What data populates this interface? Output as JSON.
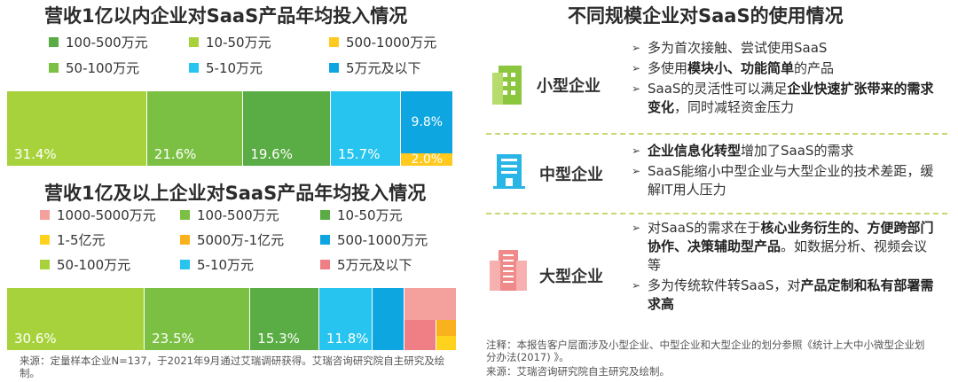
{
  "chart_data": [
    {
      "type": "bar",
      "orientation": "stacked-horizontal",
      "title": "营收1亿以内企业对SaaS产品年均投入情况",
      "legend": [
        {
          "label": "100-500万元",
          "color": "#5aac44"
        },
        {
          "label": "10-50万元",
          "color": "#a8d23c"
        },
        {
          "label": "500-1000万元",
          "color": "#ffc91e"
        },
        {
          "label": "50-100万元",
          "color": "#7bc043"
        },
        {
          "label": "5-10万元",
          "color": "#26c4ee"
        },
        {
          "label": "5万元及以下",
          "color": "#0ea6e0"
        }
      ],
      "segments": [
        {
          "name": "10-50万元",
          "value": 31.4,
          "label": "31.4%",
          "color": "#a8d23c"
        },
        {
          "name": "50-100万元",
          "value": 21.6,
          "label": "21.6%",
          "color": "#7bc043"
        },
        {
          "name": "100-500万元",
          "value": 19.6,
          "label": "19.6%",
          "color": "#5aac44"
        },
        {
          "name": "5-10万元",
          "value": 15.7,
          "label": "15.7%",
          "color": "#26c4ee"
        },
        {
          "name": "5万元及以下",
          "value": 9.8,
          "label": "9.8%",
          "color": "#0ea6e0"
        },
        {
          "name": "500-1000万元",
          "value": 2.0,
          "label": "2.0%",
          "color": "#ffc91e"
        }
      ]
    },
    {
      "type": "bar",
      "orientation": "stacked-horizontal",
      "title": "营收1亿及以上企业对SaaS产品年均投入情况",
      "legend": [
        {
          "label": "1000-5000万元",
          "color": "#f4a09c"
        },
        {
          "label": "100-500万元",
          "color": "#7bc043"
        },
        {
          "label": "10-50万元",
          "color": "#5aac44"
        },
        {
          "label": "1-5亿元",
          "color": "#ffd21e"
        },
        {
          "label": "5000万-1亿元",
          "color": "#f9b21e"
        },
        {
          "label": "500-1000万元",
          "color": "#0ea6e0"
        },
        {
          "label": "50-100万元",
          "color": "#a8d23c"
        },
        {
          "label": "5-10万元",
          "color": "#26c4ee"
        },
        {
          "label": "5万元及以下",
          "color": "#f07f85"
        }
      ],
      "segments": [
        {
          "name": "50-100万元",
          "value": 30.6,
          "label": "30.6%",
          "color": "#a8d23c"
        },
        {
          "name": "100-500万元",
          "value": 23.5,
          "label": "23.5%",
          "color": "#7bc043"
        },
        {
          "name": "10-50万元",
          "value": 15.3,
          "label": "15.3%",
          "color": "#5aac44"
        },
        {
          "name": "5-10万元",
          "value": 11.8,
          "label": "11.8%",
          "color": "#26c4ee"
        },
        {
          "name": "500-1000万元",
          "value": 7.1,
          "label": "",
          "color": "#0ea6e0"
        },
        {
          "name": "1000-5000万元",
          "value": 6.0,
          "label": "",
          "color": "#f4a09c"
        },
        {
          "name": "5万元及以下",
          "value": 3.5,
          "label": "",
          "color": "#f07f85"
        },
        {
          "name": "5000万-1亿元",
          "value": 1.2,
          "label": "",
          "color": "#f9b21e"
        },
        {
          "name": "1-5亿元",
          "value": 1.0,
          "label": "",
          "color": "#ffd21e"
        }
      ]
    }
  ],
  "left_source": "来源：定量样本企业N=137，于2021年9月通过艾瑞调研获得。艾瑞咨询研究院自主研究及绘制。",
  "right": {
    "title": "不同规模企业对SaaS的使用情况",
    "groups": [
      {
        "label": "小型企业",
        "icon": "small-building-icon",
        "icon_color": "#8cc63f",
        "bullets": [
          {
            "parts": [
              {
                "t": "多为首次接触、尝试使用SaaS",
                "b": false
              }
            ]
          },
          {
            "parts": [
              {
                "t": "多使用",
                "b": false
              },
              {
                "t": "模块小、功能简单",
                "b": true
              },
              {
                "t": "的产品",
                "b": false
              }
            ]
          },
          {
            "parts": [
              {
                "t": "SaaS的灵活性可以满足",
                "b": false
              },
              {
                "t": "企业快速扩张带来的需求变化",
                "b": true
              },
              {
                "t": "，同时减轻资金压力",
                "b": false
              }
            ]
          }
        ]
      },
      {
        "label": "中型企业",
        "icon": "medium-building-icon",
        "icon_color": "#29b6e6",
        "bullets": [
          {
            "parts": [
              {
                "t": "企业信息化转型",
                "b": true
              },
              {
                "t": "增加了SaaS的需求",
                "b": false
              }
            ]
          },
          {
            "parts": [
              {
                "t": "SaaS能缩小中型企业与大型企业的技术差距，缓解IT用人压力",
                "b": false
              }
            ]
          }
        ]
      },
      {
        "label": "大型企业",
        "icon": "large-building-icon",
        "icon_color": "#f08a8a",
        "bullets": [
          {
            "parts": [
              {
                "t": "对SaaS的需求在于",
                "b": false
              },
              {
                "t": "核心业务衍生的、方便跨部门协作、决策辅助型产品",
                "b": true
              },
              {
                "t": "。如数据分析、视频会议等",
                "b": false
              }
            ]
          },
          {
            "parts": [
              {
                "t": "多为传统软件转SaaS，对",
                "b": false
              },
              {
                "t": "产品定制和私有部署需求高",
                "b": true
              }
            ]
          }
        ]
      }
    ],
    "note": "注释：本报告客户层面涉及小型企业、中型企业和大型企业的划分参照《统计上大中小微型企业划分办法(2017) 》。",
    "source": "来源：艾瑞咨询研究院自主研究及绘制。"
  }
}
